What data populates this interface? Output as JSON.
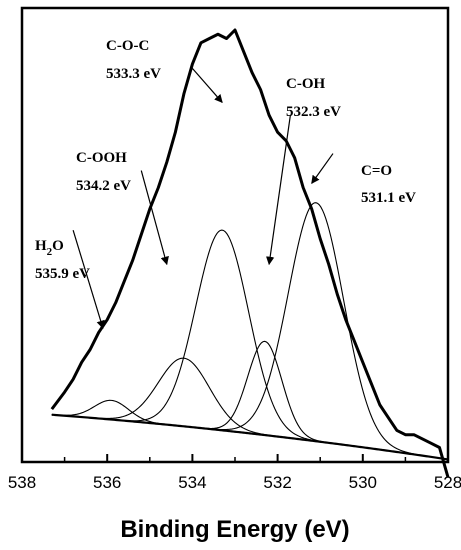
{
  "chart_data": {
    "type": "line",
    "xlabel": "Binding Energy (eV)",
    "ylabel": "",
    "x_reversed": true,
    "xlim": [
      538,
      528
    ],
    "ylim": [
      0,
      1
    ],
    "x_ticks": [
      538,
      536,
      534,
      532,
      530,
      528
    ],
    "x_tick_labels": [
      "538",
      "536",
      "534",
      "532",
      "530",
      "528"
    ],
    "grid": false,
    "background": {
      "a0": 0.102,
      "a1": 0.072,
      "a2": 0.004
    },
    "components": [
      {
        "name": "H2O",
        "center": 535.9,
        "amp": 0.045,
        "sigma": 0.4
      },
      {
        "name": "C-OOH",
        "center": 534.2,
        "amp": 0.16,
        "sigma": 0.6
      },
      {
        "name": "C-O-C",
        "center": 533.3,
        "amp": 0.47,
        "sigma": 0.62
      },
      {
        "name": "C-OH",
        "center": 532.3,
        "amp": 0.22,
        "sigma": 0.4
      },
      {
        "name": "C=O",
        "center": 531.1,
        "amp": 0.56,
        "sigma": 0.65
      }
    ],
    "raw_spectrum": {
      "x": [
        537.3,
        537.0,
        536.8,
        536.6,
        536.4,
        536.2,
        536.0,
        535.8,
        535.6,
        535.4,
        535.2,
        535.0,
        534.8,
        534.6,
        534.4,
        534.2,
        534.0,
        533.8,
        533.6,
        533.4,
        533.2,
        533.0,
        532.8,
        532.6,
        532.4,
        532.2,
        532.0,
        531.8,
        531.6,
        531.4,
        531.2,
        531.0,
        530.8,
        530.6,
        530.4,
        530.2,
        530.0,
        529.8,
        529.6,
        529.4,
        529.2,
        529.0,
        528.8,
        528.6,
        528.4,
        528.2,
        528.0
      ],
      "y": [
        0.11,
        0.15,
        0.18,
        0.22,
        0.25,
        0.29,
        0.32,
        0.36,
        0.41,
        0.46,
        0.52,
        0.58,
        0.63,
        0.69,
        0.76,
        0.85,
        0.92,
        0.97,
        0.98,
        0.99,
        0.98,
        1.0,
        0.95,
        0.9,
        0.86,
        0.8,
        0.76,
        0.74,
        0.7,
        0.63,
        0.58,
        0.51,
        0.45,
        0.38,
        0.32,
        0.27,
        0.22,
        0.17,
        0.12,
        0.09,
        0.06,
        0.05,
        0.05,
        0.04,
        0.03,
        0.02,
        -0.05
      ]
    },
    "annotations": [
      {
        "id": "h2o",
        "name": "H2O",
        "energy": "535.9 eV",
        "arrow_from": [
          536.8,
          0.53
        ],
        "arrow_to": [
          536.1,
          0.3
        ]
      },
      {
        "id": "cooh",
        "name": "C-OOH",
        "energy": "534.2 eV",
        "arrow_from": [
          535.2,
          0.67
        ],
        "arrow_to": [
          534.6,
          0.45
        ]
      },
      {
        "id": "coc",
        "name": "C-O-C",
        "energy": "533.3 eV",
        "arrow_from": [
          534.0,
          0.91
        ],
        "arrow_to": [
          533.3,
          0.83
        ]
      },
      {
        "id": "coh",
        "name": "C-OH",
        "energy": "532.3 eV",
        "arrow_from": [
          531.7,
          0.8
        ],
        "arrow_to": [
          532.2,
          0.45
        ]
      },
      {
        "id": "co",
        "name": "C=O",
        "energy": "531.1 eV",
        "arrow_from": [
          530.7,
          0.71
        ],
        "arrow_to": [
          531.2,
          0.64
        ]
      }
    ]
  }
}
